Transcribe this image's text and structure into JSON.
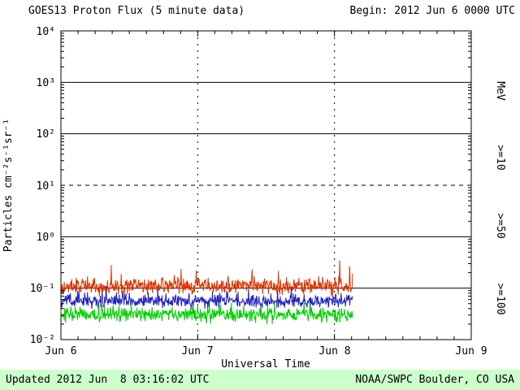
{
  "header": {
    "title": "GOES13 Proton Flux (5 minute data)",
    "begin": "Begin: 2012 Jun 6 0000 UTC"
  },
  "footer": {
    "updated": "Updated 2012 Jun  8 03:16:02 UTC",
    "source": "NOAA/SWPC Boulder, CO USA",
    "bg_color": "#ccffcc"
  },
  "chart_data": {
    "type": "line",
    "title": "GOES13 Proton Flux (5 minute data)",
    "xlabel": "Universal Time",
    "ylabel": "Particles cm⁻²s⁻¹sr⁻¹",
    "x_ticks": [
      "Jun 6",
      "Jun 7",
      "Jun 8",
      "Jun 9"
    ],
    "x_range_days": [
      0,
      3
    ],
    "y_ticks": [
      "10⁴",
      "10³",
      "10²",
      "10¹",
      "10⁰",
      "10⁻¹",
      "10⁻²"
    ],
    "ylog_range": [
      -2,
      4
    ],
    "y_scale": "log",
    "grid": {
      "solid_horizontal_exponents": [
        3,
        2,
        0,
        -1
      ],
      "dashed_horizontal_exponents": [
        1
      ],
      "dashed_vertical_days": [
        1,
        2
      ]
    },
    "legend_position": "right-rotated",
    "right_axis_labels": [
      {
        "text": "MeV",
        "color": "#000000"
      },
      {
        "text": ">=10",
        "color": "#dd3300"
      },
      {
        "text": ">=50",
        "color": "#2222bb"
      },
      {
        "text": ">=100",
        "color": "#00cc00"
      }
    ],
    "data_start_day": 0,
    "data_end_day": 2.135,
    "sample_interval_minutes": 5,
    "series": [
      {
        "name": ">=10 MeV",
        "color": "#dd3300",
        "median_flux": 0.11,
        "log_spread": 0.24,
        "spike_prob": 0.035,
        "spike_log": 0.28,
        "seed": 101
      },
      {
        "name": ">=50 MeV",
        "color": "#2222bb",
        "median_flux": 0.057,
        "log_spread": 0.21,
        "spike_prob": 0.02,
        "spike_log": 0.2,
        "seed": 202
      },
      {
        "name": ">=100 MeV",
        "color": "#00cc00",
        "median_flux": 0.031,
        "log_spread": 0.21,
        "spike_prob": 0.02,
        "spike_log": 0.18,
        "seed": 303
      }
    ]
  }
}
